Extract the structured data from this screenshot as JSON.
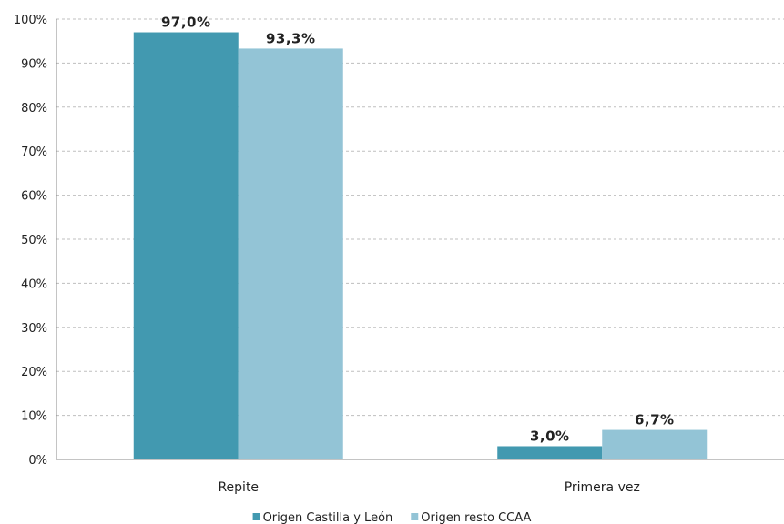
{
  "chart_data": {
    "type": "bar",
    "title": "",
    "xlabel": "",
    "ylabel": "",
    "categories": [
      "Repite",
      "Primera vez"
    ],
    "series": [
      {
        "name": "Origen Castilla  y León",
        "values": [
          97.0,
          3.0
        ],
        "labels": [
          "97,0%",
          "3,0%"
        ],
        "color": "#4299b0"
      },
      {
        "name": "Origen resto CCAA",
        "values": [
          93.3,
          6.7
        ],
        "labels": [
          "93,3%",
          "6,7%"
        ],
        "color": "#93c4d6"
      }
    ],
    "ylim": [
      0,
      100
    ],
    "yticks": [
      0,
      10,
      20,
      30,
      40,
      50,
      60,
      70,
      80,
      90,
      100
    ],
    "ytick_labels": [
      "0%",
      "10%",
      "20%",
      "30%",
      "40%",
      "50%",
      "60%",
      "70%",
      "80%",
      "90%",
      "100%"
    ],
    "grid": true,
    "legend_position": "bottom"
  }
}
